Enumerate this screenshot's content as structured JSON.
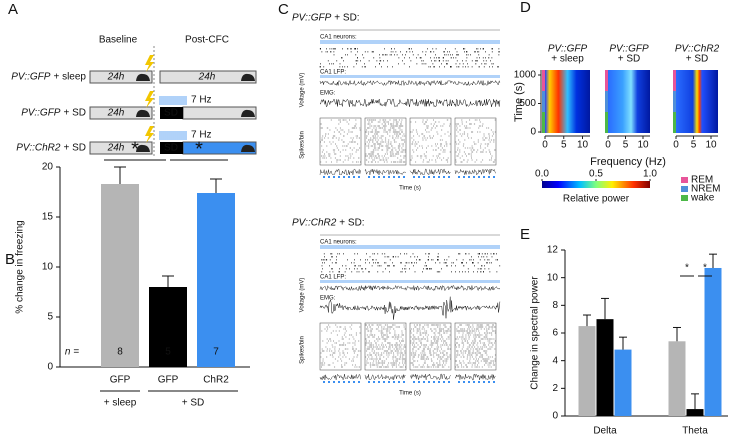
{
  "panel_a": {
    "label": "A",
    "phase_labels": [
      "Baseline",
      "Post-CFC"
    ],
    "rows": [
      {
        "line": "PV::GFP",
        "condition": "+ sleep",
        "blocks": [
          "24h",
          "24h"
        ]
      },
      {
        "line": "PV::GFP",
        "condition": "+ SD",
        "blocks": [
          "24h",
          "SD"
        ],
        "stim": "7 Hz"
      },
      {
        "line": "PV::ChR2",
        "condition": "+ SD",
        "blocks": [
          "24h",
          "SD"
        ],
        "stim": "7 Hz"
      }
    ]
  },
  "panel_c": {
    "label": "C",
    "blocks": [
      {
        "line": "PV::GFP",
        "condition": "+ SD:",
        "neurons": "CA1 neurons:",
        "lfp": "CA1 LFP:",
        "emg": "EMG:",
        "voltage": "Voltage (mV)",
        "spikes": "Spikes/bin",
        "time": "Time (s)"
      },
      {
        "line": "PV::ChR2",
        "condition": "+ SD:",
        "neurons": "CA1 neurons:",
        "lfp": "CA1 LFP:",
        "emg": "EMG:",
        "voltage": "Voltage (mV)",
        "spikes": "Spikes/bin",
        "time": "Time (s)"
      }
    ]
  },
  "panel_d": {
    "label": "D",
    "spectrograms": [
      {
        "line": "PV::GFP",
        "condition": "+ sleep"
      },
      {
        "line": "PV::GFP",
        "condition": "+ SD"
      },
      {
        "line": "PV::ChR2",
        "condition": "+ SD"
      }
    ],
    "ylabel": "Time (s)",
    "ylim": [
      0,
      1000
    ],
    "yticks": [
      0,
      500,
      1000
    ],
    "xlabel": "Frequency (Hz)",
    "xlim": [
      0,
      12
    ],
    "xticks": [
      0,
      5,
      10
    ],
    "colorbar": {
      "label": "Relative power",
      "lim": [
        0,
        1
      ],
      "ticks": [
        {
          "value": 0,
          "label": "0.0"
        },
        {
          "value": 0.5,
          "label": "0.5"
        },
        {
          "value": 1,
          "label": "1.0"
        }
      ]
    },
    "legend": [
      {
        "name": "REM",
        "color": "#e8559a"
      },
      {
        "name": "NREM",
        "color": "#4f8fd9"
      },
      {
        "name": "wake",
        "color": "#4cb848"
      }
    ]
  },
  "chart_data": [
    {
      "type": "bar",
      "label": "B",
      "ylabel": "% change in freezing",
      "categories": [
        "GFP",
        "GFP",
        "ChR2"
      ],
      "group_labels": [
        "+ sleep",
        "+ SD"
      ],
      "values": [
        18.3,
        8,
        17.4
      ],
      "errors": [
        1.7,
        1.1,
        1.4
      ],
      "colors": [
        "#b5b5b5",
        "#000000",
        "#3b8ff0"
      ],
      "ylim": [
        0,
        20
      ],
      "yticks": [
        0,
        5,
        10,
        15,
        20
      ],
      "n_label": "n =",
      "n": [
        8,
        5,
        7
      ],
      "annotations": [
        "*",
        "*"
      ]
    },
    {
      "type": "grouped-bar",
      "label": "E",
      "ylabel": "Change in spectral power",
      "categories": [
        "Delta",
        "Theta"
      ],
      "series": [
        {
          "color": "#b5b5b5",
          "values": [
            6.5,
            5.4
          ],
          "errors": [
            0.8,
            1.0
          ]
        },
        {
          "color": "#000000",
          "values": [
            7.0,
            0.5
          ],
          "errors": [
            1.5,
            1.1
          ]
        },
        {
          "color": "#3b8ff0",
          "values": [
            4.8,
            10.7
          ],
          "errors": [
            0.9,
            1.0
          ]
        }
      ],
      "ylim": [
        0,
        12
      ],
      "yticks": [
        0,
        2,
        4,
        6,
        8,
        10,
        12
      ],
      "annotations": [
        "*",
        "*"
      ]
    }
  ]
}
